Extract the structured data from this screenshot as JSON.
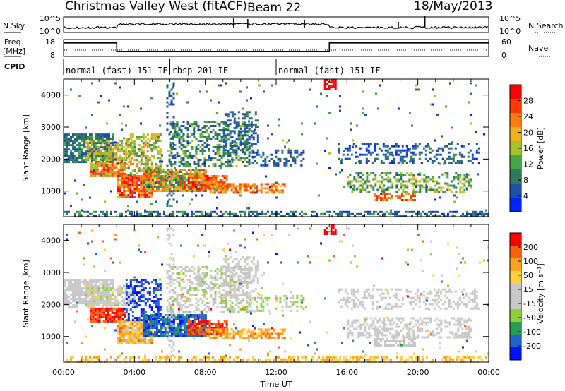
{
  "header": {
    "title": "Christmas Valley West (fitACF)",
    "beam": "Beam 22",
    "date": "18/May/2013"
  },
  "panels": {
    "nsky_label": "N.Sky",
    "nsearch_label": "N.Search",
    "nsky_ticks": [
      "10^5",
      "10^0"
    ],
    "nsearch_ticks": [
      "10^5",
      "10^0"
    ],
    "freq_label_1": "Freq.",
    "freq_label_2": "[MHz]",
    "freq_ticks": [
      "18",
      "8"
    ],
    "nave_label": "Nave",
    "nave_ticks": [
      "60",
      "0"
    ],
    "cpid_label": "CPID",
    "cpid_segments": [
      {
        "name": "normal (fast) 151 IF",
        "start": 0,
        "end": 6
      },
      {
        "name": "rbsp 201 IF",
        "start": 6,
        "end": 12
      },
      {
        "name": "normal (fast) 151 IF",
        "start": 12,
        "end": 24
      }
    ]
  },
  "axes": {
    "xlabel": "Time UT",
    "x_ticks": [
      "00:00",
      "04:00",
      "08:00",
      "12:00",
      "16:00",
      "20:00",
      "00:00"
    ],
    "ylabel": "Slant Range [km]",
    "y_ticks": [
      "1000",
      "2000",
      "3000",
      "4000"
    ]
  },
  "chart_data": {
    "type": "heatmap",
    "x_range_hours": [
      0,
      24
    ],
    "y_range_km": [
      200,
      4500
    ],
    "freq_series": [
      {
        "t": 0,
        "mhz": 16
      },
      {
        "t": 3,
        "mhz": 16
      },
      {
        "t": 3,
        "mhz": 11
      },
      {
        "t": 15,
        "mhz": 11
      },
      {
        "t": 15,
        "mhz": 16
      },
      {
        "t": 24,
        "mhz": 16
      }
    ],
    "power_colorbar": {
      "label": "Power [dB]",
      "ticks": [
        "4",
        "8",
        "12",
        "16",
        "20",
        "24",
        "28"
      ],
      "range": [
        0,
        30
      ],
      "colors": [
        "#0026ff",
        "#1e50a8",
        "#2f7a5c",
        "#47a646",
        "#a6c12a",
        "#f0b020",
        "#ff7a10",
        "#ff3a00",
        "#ff0000"
      ]
    },
    "velocity_colorbar": {
      "label": "Velocity [m s⁻¹]",
      "ticks": [
        "200",
        "100",
        "50",
        "15",
        "-15",
        "-50",
        "-100",
        "-200"
      ],
      "range": [
        -250,
        250
      ],
      "colors": [
        "#0012ff",
        "#1c66c8",
        "#2c9a56",
        "#8fd03a",
        "#c8c8c8",
        "#c8c8c8",
        "#ffd040",
        "#ffa020",
        "#ff6010",
        "#ff0000"
      ]
    }
  }
}
